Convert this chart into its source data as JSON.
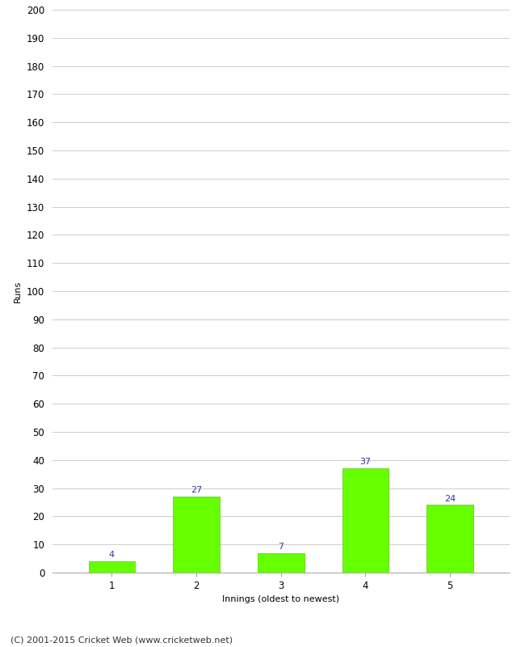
{
  "categories": [
    "1",
    "2",
    "3",
    "4",
    "5"
  ],
  "values": [
    4,
    27,
    7,
    37,
    24
  ],
  "bar_color": "#66ff00",
  "bar_edge_color": "#55cc00",
  "value_label_color": "#3333aa",
  "xlabel": "Innings (oldest to newest)",
  "ylabel": "Runs",
  "ylim": [
    0,
    200
  ],
  "yticks": [
    0,
    10,
    20,
    30,
    40,
    50,
    60,
    70,
    80,
    90,
    100,
    110,
    120,
    130,
    140,
    150,
    160,
    170,
    180,
    190,
    200
  ],
  "footer": "(C) 2001-2015 Cricket Web (www.cricketweb.net)",
  "background_color": "#ffffff",
  "grid_color": "#cccccc",
  "label_fontsize": 8.5,
  "axis_label_fontsize": 8,
  "footer_fontsize": 8,
  "value_fontsize": 8,
  "bar_width": 0.55
}
